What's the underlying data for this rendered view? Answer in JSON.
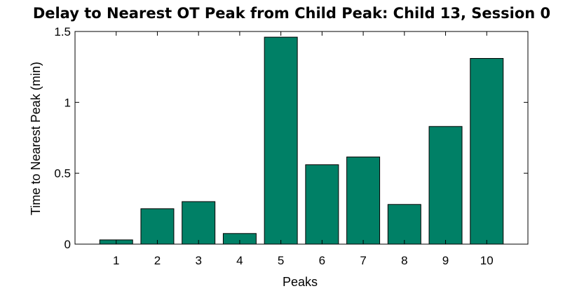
{
  "chart_data": {
    "type": "bar",
    "title": "Delay to Nearest OT Peak from Child Peak: Child 13, Session 0",
    "xlabel": "Peaks",
    "ylabel": "Time to Nearest Peak (min)",
    "categories": [
      "1",
      "2",
      "3",
      "4",
      "5",
      "6",
      "7",
      "8",
      "9",
      "10"
    ],
    "values": [
      0.03,
      0.25,
      0.3,
      0.075,
      1.46,
      0.56,
      0.615,
      0.28,
      0.83,
      1.31
    ],
    "xlim": [
      0,
      11
    ],
    "ylim": [
      0,
      1.5
    ],
    "yticks": [
      0,
      0.5,
      1,
      1.5
    ],
    "ytick_labels": [
      "0",
      "0.5",
      "1",
      "1.5"
    ],
    "bar_color": "#008066",
    "bar_edge_color": "#000000",
    "grid": false,
    "legend": "none"
  }
}
